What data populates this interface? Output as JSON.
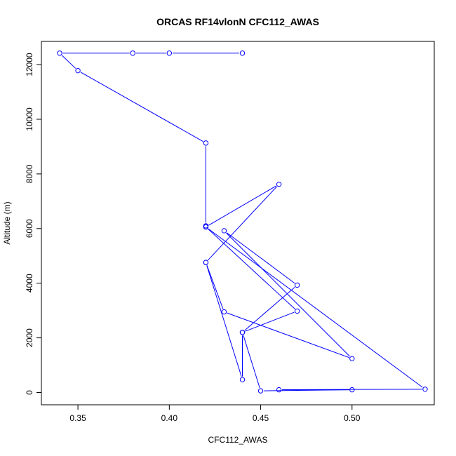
{
  "chart_data": {
    "type": "line",
    "title": "ORCAS RF14vlonN CFC112_AWAS",
    "xlabel": "CFC112_AWAS",
    "ylabel": "Altitude (m)",
    "xlim": [
      0.33,
      0.545
    ],
    "ylim": [
      -450,
      12850
    ],
    "x_ticks": [
      0.35,
      0.4,
      0.45,
      0.5
    ],
    "x_tick_labels": [
      "0.35",
      "0.40",
      "0.45",
      "0.50"
    ],
    "y_ticks": [
      0,
      2000,
      4000,
      6000,
      8000,
      10000,
      12000
    ],
    "y_tick_labels": [
      "0",
      "2000",
      "4000",
      "6000",
      "8000",
      "10000",
      "12000"
    ],
    "line_color": "#0000ff",
    "marker": "open-circle",
    "grid": false,
    "legend": "none",
    "series": [
      {
        "x": [
          0.44,
          0.4,
          0.38,
          0.34,
          0.35,
          0.42,
          0.42,
          0.42,
          0.46,
          0.42,
          0.44,
          0.44,
          0.45,
          0.5,
          0.46,
          0.54,
          0.42,
          0.47,
          0.44,
          0.47,
          0.43,
          0.5,
          0.43,
          0.42
        ],
        "y": [
          12420,
          12420,
          12420,
          12420,
          11780,
          9130,
          6100,
          6060,
          7620,
          4760,
          470,
          2200,
          60,
          100,
          100,
          120,
          6060,
          2980,
          2200,
          3930,
          5920,
          1240,
          2950,
          4760
        ]
      }
    ]
  }
}
